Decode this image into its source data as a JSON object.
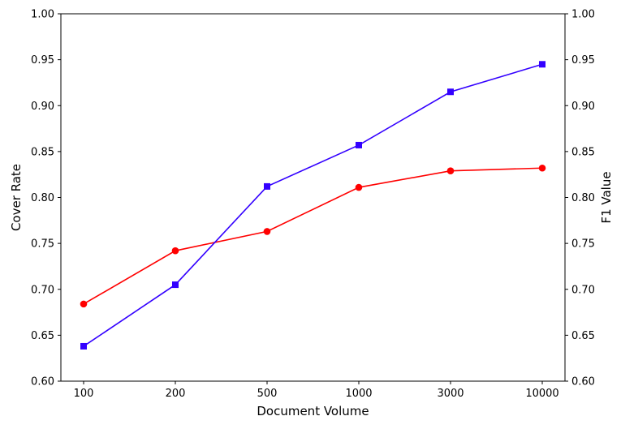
{
  "chart_data": {
    "type": "line",
    "categories": [
      "100",
      "200",
      "500",
      "1000",
      "3000",
      "10000"
    ],
    "xlabel": "Document Volume",
    "ylabel_left": "Cover Rate",
    "ylabel_right": "F1 Value",
    "ylim": [
      0.6,
      1.0
    ],
    "yticks": [
      "0.60",
      "0.65",
      "0.70",
      "0.75",
      "0.80",
      "0.85",
      "0.90",
      "0.95",
      "1.00"
    ],
    "grid": false,
    "series": [
      {
        "axis": "left",
        "color": "#ff0000",
        "marker": "circle",
        "values": [
          0.684,
          0.742,
          0.763,
          0.811,
          0.829,
          0.832
        ]
      },
      {
        "axis": "right",
        "color": "#3300ff",
        "marker": "square",
        "values": [
          0.638,
          0.705,
          0.812,
          0.857,
          0.915,
          0.945
        ]
      }
    ]
  }
}
